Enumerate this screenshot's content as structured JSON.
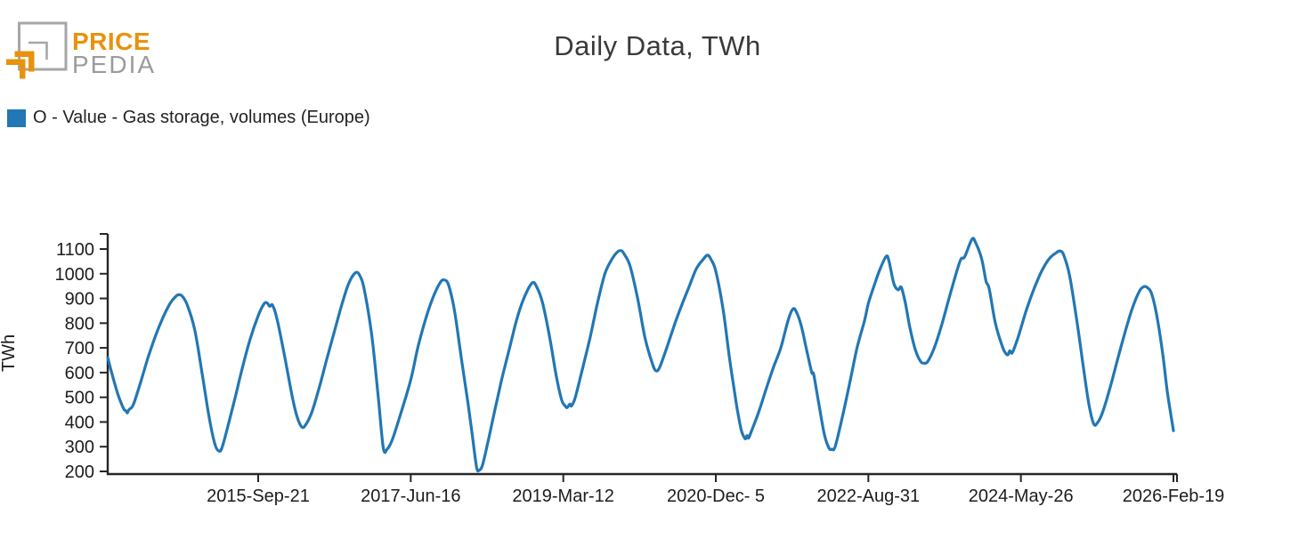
{
  "logo": {
    "brand_top": "PRICE",
    "brand_bottom": "PEDIA",
    "orange": "#E8920D",
    "gray": "#A6A6A6"
  },
  "chart_data": {
    "type": "line",
    "title": "Daily Data, TWh",
    "ylabel": "TWh",
    "legend_label": "O - Value - Gas storage, volumes (Europe)",
    "line_color": "#2277b4",
    "axis_color": "#262626",
    "label_color": "#1c1c1c",
    "grid": "off",
    "legend_position": "top-left",
    "ylim": [
      190,
      1165
    ],
    "y_ticks": [
      200,
      300,
      400,
      500,
      600,
      700,
      800,
      900,
      1000,
      1100
    ],
    "x_ticks": [
      "2015-Sep-21",
      "2017-Jun-16",
      "2019-Mar-12",
      "2020-Dec- 5",
      "2022-Aug-31",
      "2024-May-26",
      "2026-Feb-19"
    ],
    "x_tick_dates": [
      "2015-09-21",
      "2017-06-16",
      "2019-03-12",
      "2020-12-05",
      "2022-08-31",
      "2024-05-26",
      "2026-02-19"
    ],
    "series": [
      {
        "name": "O - Value - Gas storage, volumes (Europe)",
        "points": [
          [
            "2014-01-04",
            660
          ],
          [
            "2014-01-20",
            600
          ],
          [
            "2014-02-15",
            512
          ],
          [
            "2014-03-10",
            455
          ],
          [
            "2014-03-20",
            445
          ],
          [
            "2014-03-26",
            437
          ],
          [
            "2014-04-02",
            450
          ],
          [
            "2014-04-20",
            470
          ],
          [
            "2014-05-20",
            560
          ],
          [
            "2014-06-20",
            660
          ],
          [
            "2014-07-20",
            745
          ],
          [
            "2014-08-20",
            820
          ],
          [
            "2014-09-20",
            880
          ],
          [
            "2014-10-10",
            905
          ],
          [
            "2014-10-26",
            915
          ],
          [
            "2014-11-10",
            908
          ],
          [
            "2014-12-01",
            872
          ],
          [
            "2015-01-01",
            770
          ],
          [
            "2015-02-01",
            590
          ],
          [
            "2015-03-01",
            420
          ],
          [
            "2015-03-25",
            310
          ],
          [
            "2015-04-12",
            282
          ],
          [
            "2015-04-25",
            300
          ],
          [
            "2015-05-20",
            390
          ],
          [
            "2015-06-20",
            510
          ],
          [
            "2015-07-20",
            630
          ],
          [
            "2015-08-20",
            740
          ],
          [
            "2015-09-21",
            830
          ],
          [
            "2015-10-15",
            878
          ],
          [
            "2015-10-28",
            882
          ],
          [
            "2015-11-08",
            868
          ],
          [
            "2015-11-20",
            872
          ],
          [
            "2015-12-10",
            810
          ],
          [
            "2016-01-10",
            660
          ],
          [
            "2016-02-10",
            500
          ],
          [
            "2016-03-01",
            420
          ],
          [
            "2016-03-20",
            380
          ],
          [
            "2016-04-05",
            388
          ],
          [
            "2016-05-01",
            440
          ],
          [
            "2016-06-01",
            540
          ],
          [
            "2016-07-01",
            650
          ],
          [
            "2016-08-01",
            760
          ],
          [
            "2016-09-01",
            870
          ],
          [
            "2016-10-01",
            960
          ],
          [
            "2016-10-28",
            1003
          ],
          [
            "2016-11-15",
            995
          ],
          [
            "2016-12-05",
            935
          ],
          [
            "2017-01-05",
            750
          ],
          [
            "2017-02-01",
            500
          ],
          [
            "2017-02-22",
            295
          ],
          [
            "2017-03-10",
            290
          ],
          [
            "2017-04-01",
            330
          ],
          [
            "2017-05-01",
            420
          ],
          [
            "2017-06-16",
            570
          ],
          [
            "2017-07-15",
            700
          ],
          [
            "2017-08-15",
            810
          ],
          [
            "2017-09-15",
            900
          ],
          [
            "2017-10-15",
            962
          ],
          [
            "2017-11-01",
            975
          ],
          [
            "2017-11-20",
            955
          ],
          [
            "2017-12-15",
            850
          ],
          [
            "2018-01-15",
            640
          ],
          [
            "2018-02-10",
            470
          ],
          [
            "2018-03-01",
            330
          ],
          [
            "2018-03-17",
            215
          ],
          [
            "2018-03-28",
            205
          ],
          [
            "2018-04-10",
            225
          ],
          [
            "2018-05-01",
            310
          ],
          [
            "2018-06-01",
            450
          ],
          [
            "2018-07-01",
            580
          ],
          [
            "2018-08-01",
            700
          ],
          [
            "2018-09-01",
            820
          ],
          [
            "2018-10-01",
            905
          ],
          [
            "2018-11-02",
            962
          ],
          [
            "2018-11-20",
            950
          ],
          [
            "2018-12-15",
            885
          ],
          [
            "2019-01-15",
            740
          ],
          [
            "2019-02-10",
            590
          ],
          [
            "2019-03-05",
            490
          ],
          [
            "2019-03-20",
            465
          ],
          [
            "2019-03-28",
            458
          ],
          [
            "2019-04-08",
            472
          ],
          [
            "2019-04-15",
            465
          ],
          [
            "2019-05-01",
            500
          ],
          [
            "2019-06-01",
            620
          ],
          [
            "2019-07-01",
            740
          ],
          [
            "2019-08-01",
            880
          ],
          [
            "2019-09-01",
            1000
          ],
          [
            "2019-10-01",
            1060
          ],
          [
            "2019-10-25",
            1090
          ],
          [
            "2019-11-08",
            1093
          ],
          [
            "2019-11-20",
            1080
          ],
          [
            "2019-12-15",
            1030
          ],
          [
            "2020-01-15",
            900
          ],
          [
            "2020-02-15",
            740
          ],
          [
            "2020-03-15",
            640
          ],
          [
            "2020-03-30",
            608
          ],
          [
            "2020-04-15",
            620
          ],
          [
            "2020-05-15",
            700
          ],
          [
            "2020-06-15",
            790
          ],
          [
            "2020-07-15",
            870
          ],
          [
            "2020-08-15",
            945
          ],
          [
            "2020-09-15",
            1020
          ],
          [
            "2020-10-15",
            1060
          ],
          [
            "2020-11-01",
            1075
          ],
          [
            "2020-11-15",
            1058
          ],
          [
            "2020-12-05",
            1010
          ],
          [
            "2021-01-05",
            850
          ],
          [
            "2021-02-01",
            650
          ],
          [
            "2021-03-01",
            470
          ],
          [
            "2021-03-20",
            370
          ],
          [
            "2021-04-01",
            340
          ],
          [
            "2021-04-08",
            332
          ],
          [
            "2021-04-14",
            345
          ],
          [
            "2021-04-20",
            335
          ],
          [
            "2021-05-01",
            360
          ],
          [
            "2021-06-01",
            440
          ],
          [
            "2021-07-01",
            530
          ],
          [
            "2021-08-01",
            620
          ],
          [
            "2021-09-01",
            700
          ],
          [
            "2021-10-01",
            810
          ],
          [
            "2021-10-21",
            857
          ],
          [
            "2021-11-05",
            845
          ],
          [
            "2021-11-25",
            790
          ],
          [
            "2021-12-20",
            680
          ],
          [
            "2022-01-08",
            600
          ],
          [
            "2022-01-16",
            592
          ],
          [
            "2022-02-05",
            480
          ],
          [
            "2022-03-01",
            350
          ],
          [
            "2022-03-20",
            295
          ],
          [
            "2022-04-01",
            290
          ],
          [
            "2022-04-15",
            300
          ],
          [
            "2022-05-15",
            420
          ],
          [
            "2022-06-15",
            560
          ],
          [
            "2022-07-15",
            700
          ],
          [
            "2022-08-15",
            810
          ],
          [
            "2022-08-31",
            880
          ],
          [
            "2022-09-20",
            940
          ],
          [
            "2022-10-15",
            1010
          ],
          [
            "2022-11-13",
            1070
          ],
          [
            "2022-11-25",
            1050
          ],
          [
            "2022-12-15",
            960
          ],
          [
            "2023-01-02",
            935
          ],
          [
            "2023-01-15",
            945
          ],
          [
            "2023-02-01",
            880
          ],
          [
            "2023-02-20",
            780
          ],
          [
            "2023-03-15",
            690
          ],
          [
            "2023-04-05",
            645
          ],
          [
            "2023-04-20",
            638
          ],
          [
            "2023-05-05",
            645
          ],
          [
            "2023-06-01",
            700
          ],
          [
            "2023-07-01",
            790
          ],
          [
            "2023-08-01",
            900
          ],
          [
            "2023-09-01",
            1005
          ],
          [
            "2023-09-20",
            1060
          ],
          [
            "2023-10-05",
            1068
          ],
          [
            "2023-11-05",
            1140
          ],
          [
            "2023-11-20",
            1125
          ],
          [
            "2023-12-15",
            1060
          ],
          [
            "2024-01-02",
            970
          ],
          [
            "2024-01-15",
            940
          ],
          [
            "2024-02-10",
            800
          ],
          [
            "2024-03-10",
            705
          ],
          [
            "2024-03-24",
            678
          ],
          [
            "2024-04-02",
            672
          ],
          [
            "2024-04-10",
            688
          ],
          [
            "2024-04-20",
            680
          ],
          [
            "2024-05-10",
            730
          ],
          [
            "2024-05-26",
            780
          ],
          [
            "2024-06-20",
            860
          ],
          [
            "2024-07-20",
            940
          ],
          [
            "2024-08-20",
            1010
          ],
          [
            "2024-09-20",
            1060
          ],
          [
            "2024-10-20",
            1085
          ],
          [
            "2024-11-05",
            1092
          ],
          [
            "2024-11-20",
            1075
          ],
          [
            "2024-12-15",
            990
          ],
          [
            "2025-01-15",
            800
          ],
          [
            "2025-02-10",
            620
          ],
          [
            "2025-03-05",
            470
          ],
          [
            "2025-03-25",
            392
          ],
          [
            "2025-04-10",
            398
          ],
          [
            "2025-05-01",
            440
          ],
          [
            "2025-06-01",
            540
          ],
          [
            "2025-07-01",
            650
          ],
          [
            "2025-08-01",
            760
          ],
          [
            "2025-09-01",
            860
          ],
          [
            "2025-10-01",
            930
          ],
          [
            "2025-10-20",
            948
          ],
          [
            "2025-11-05",
            942
          ],
          [
            "2025-11-20",
            920
          ],
          [
            "2025-12-10",
            840
          ],
          [
            "2026-01-05",
            680
          ],
          [
            "2026-01-25",
            520
          ],
          [
            "2026-02-19",
            365
          ]
        ]
      }
    ]
  }
}
